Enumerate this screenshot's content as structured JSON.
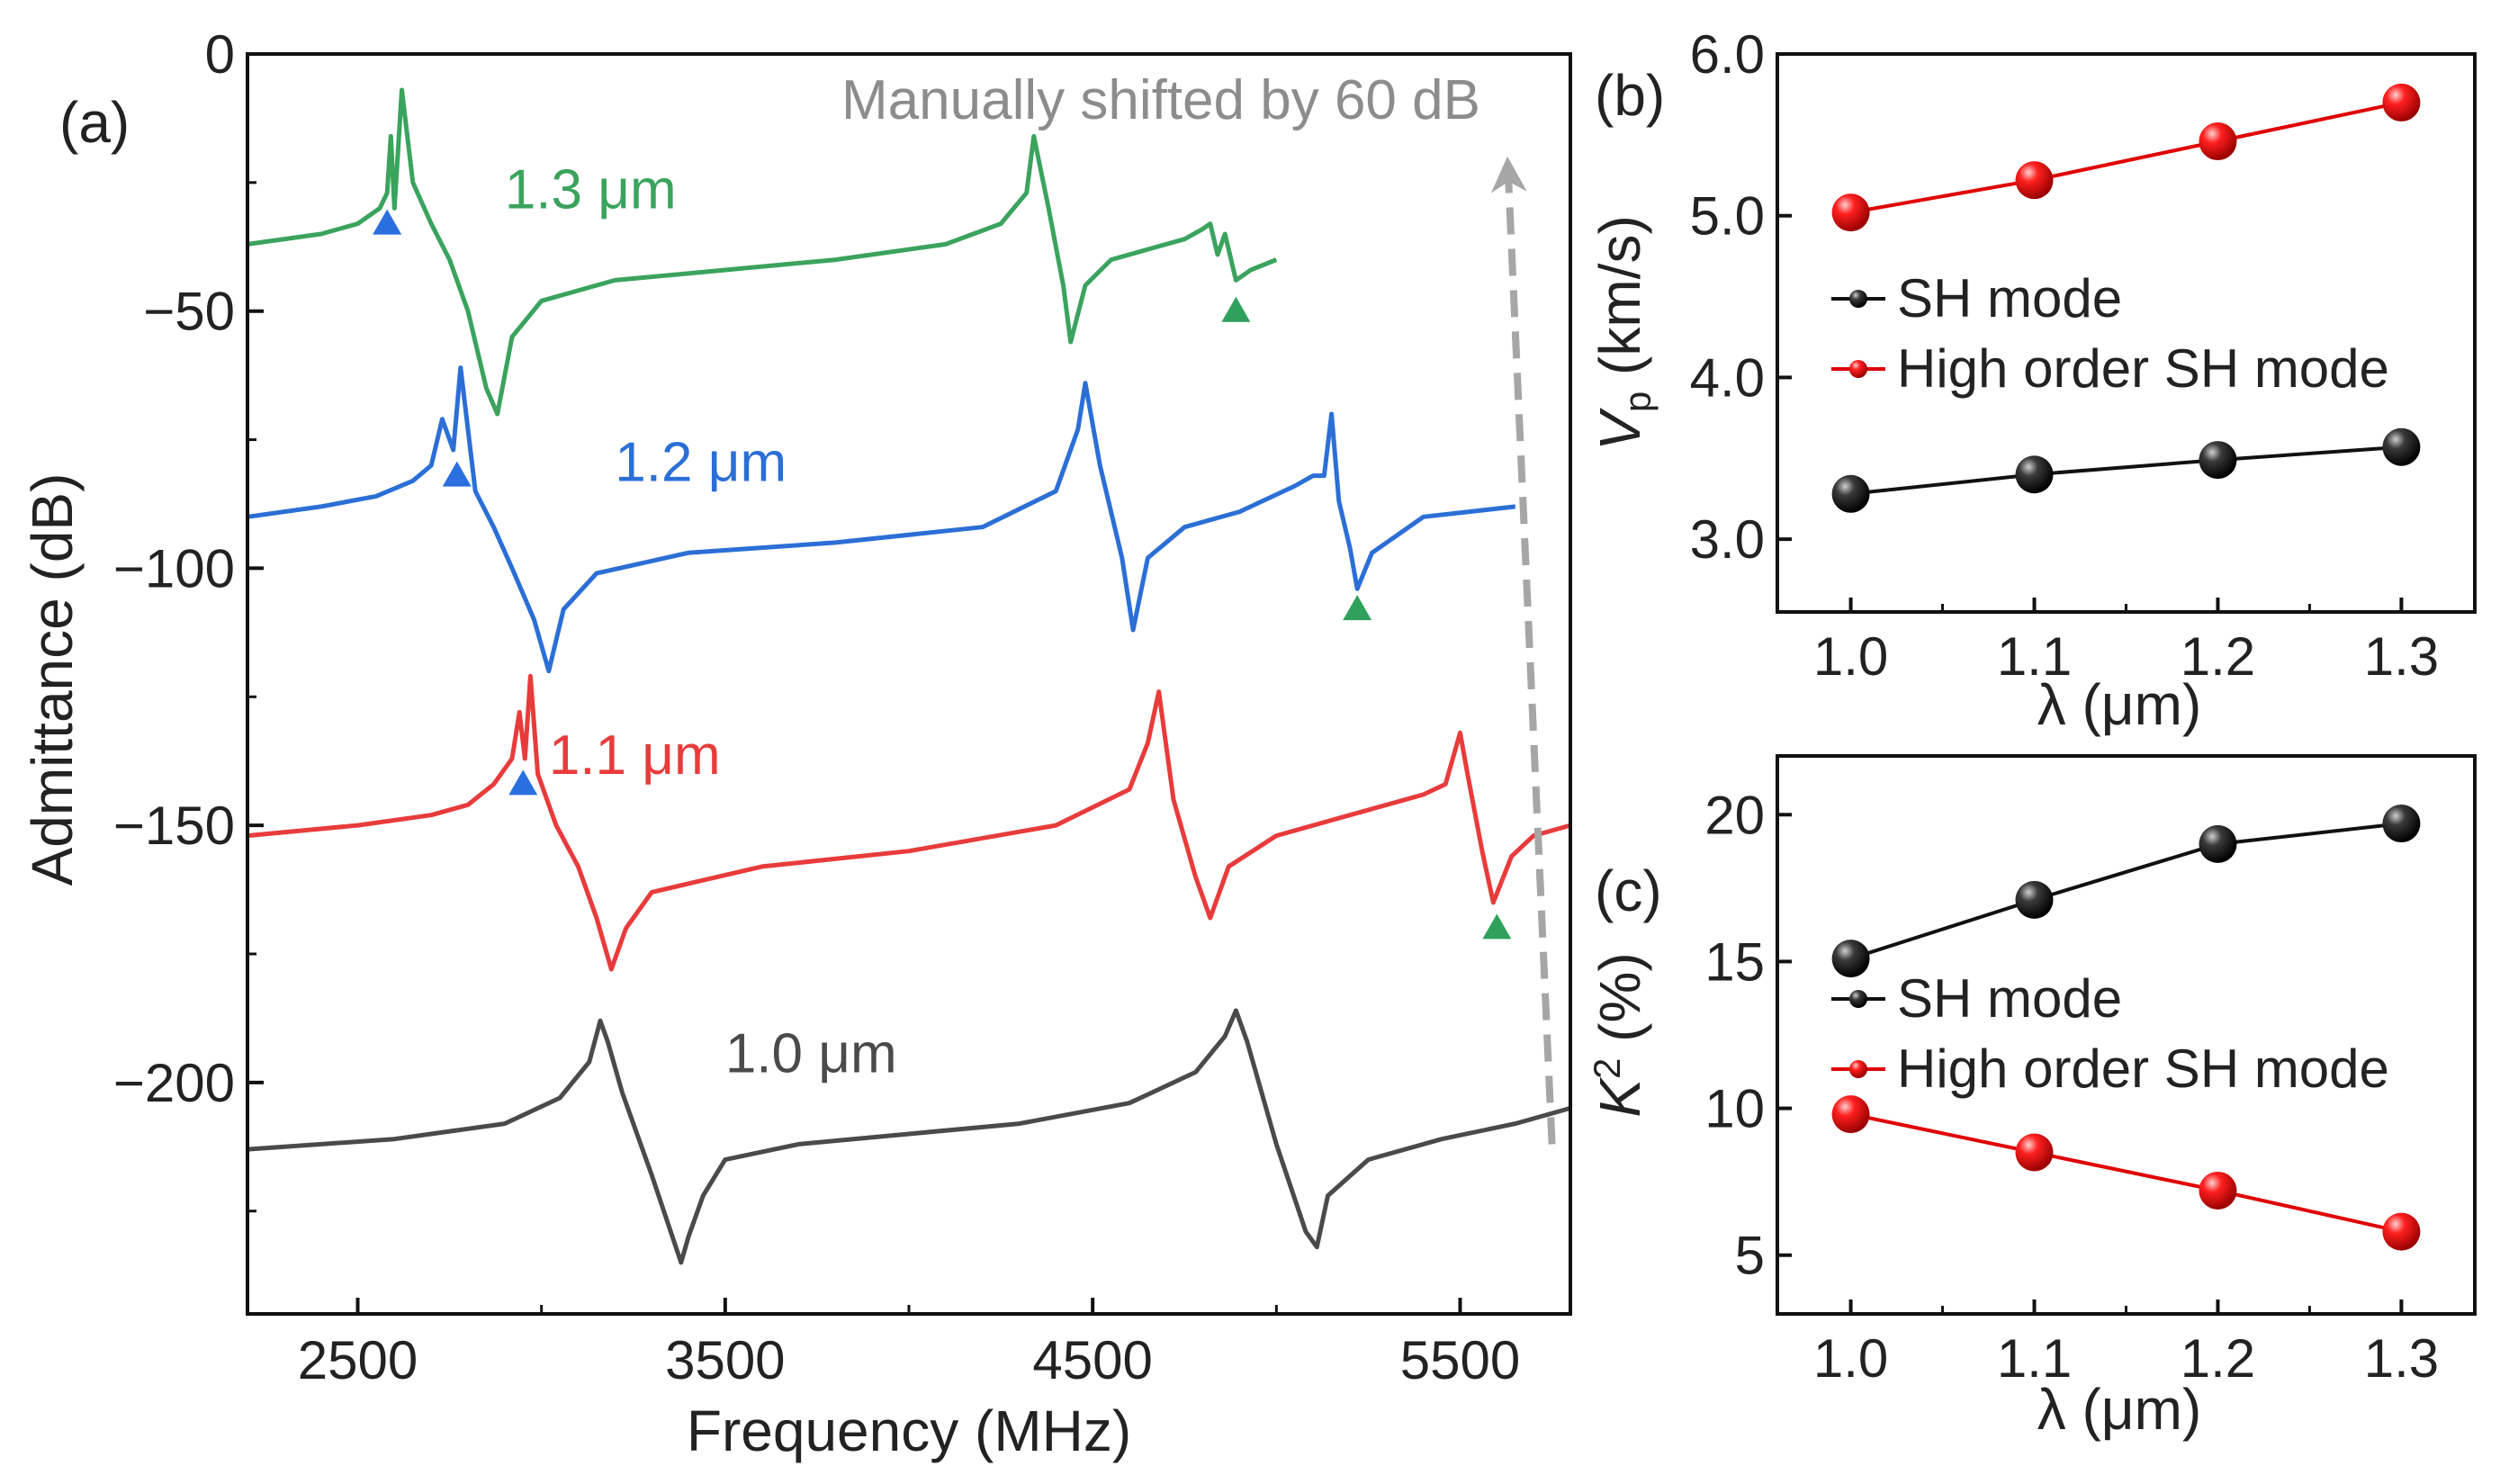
{
  "chart_data": [
    {
      "panel": "(a)",
      "type": "line",
      "xlabel": "Frequency (MHz)",
      "ylabel": "Admittance (dB)",
      "xlim": [
        2200,
        5800
      ],
      "ylim": [
        -245,
        0
      ],
      "xticks": [
        2500,
        3500,
        4500,
        5500
      ],
      "xtick_labels": [
        "2500",
        "3500",
        "4500",
        "5500"
      ],
      "yticks": [
        0,
        -50,
        -100,
        -150,
        -200
      ],
      "ytick_labels": [
        "0",
        "−50",
        "−100",
        "−150",
        "−200"
      ],
      "annotation": "Manually shifted by 60 dB",
      "colors": {
        "blue_marker": "#2a6fe0",
        "green_marker": "#2fa15c",
        "arrow": "#a6a6a6"
      },
      "series": [
        {
          "name": "1.3 μm",
          "color": "#3aa35d",
          "label_pos": [
            2900,
            -30
          ],
          "x": [
            2200,
            2400,
            2500,
            2560,
            2580,
            2590,
            2600,
            2620,
            2650,
            2700,
            2750,
            2800,
            2850,
            2880,
            2920,
            3000,
            3200,
            3500,
            3800,
            4100,
            4250,
            4320,
            4340,
            4380,
            4420,
            4440,
            4480,
            4550,
            4650,
            4750,
            4800,
            4820,
            4840,
            4860,
            4890,
            4930,
            5000
          ],
          "y": [
            -37,
            -35,
            -33,
            -30,
            -27,
            -16,
            -30,
            -7,
            -25,
            -33,
            -40,
            -50,
            -65,
            -70,
            -55,
            -48,
            -44,
            -42,
            -40,
            -37,
            -33,
            -27,
            -16,
            -30,
            -45,
            -56,
            -45,
            -40,
            -38,
            -36,
            -34,
            -33,
            -39,
            -35,
            -44,
            -42,
            -40
          ]
        },
        {
          "name": "1.2 μm",
          "color": "#2b6fd6",
          "label_pos": [
            3200,
            -83
          ],
          "x": [
            2200,
            2400,
            2550,
            2650,
            2700,
            2730,
            2760,
            2780,
            2820,
            2870,
            2920,
            2980,
            3020,
            3060,
            3150,
            3400,
            3800,
            4200,
            4400,
            4460,
            4480,
            4520,
            4580,
            4610,
            4650,
            4750,
            4900,
            5050,
            5100,
            5130,
            5150,
            5170,
            5200,
            5220,
            5260,
            5400,
            5650
          ],
          "y": [
            -90,
            -88,
            -86,
            -83,
            -80,
            -71,
            -77,
            -61,
            -85,
            -92,
            -100,
            -110,
            -120,
            -108,
            -101,
            -97,
            -95,
            -92,
            -85,
            -73,
            -64,
            -80,
            -98,
            -112,
            -98,
            -92,
            -89,
            -84,
            -82,
            -82,
            -70,
            -87,
            -96,
            -104,
            -97,
            -90,
            -88
          ]
        },
        {
          "name": "1.1 μm",
          "color": "#e83b3b",
          "label_pos": [
            3020,
            -140
          ],
          "x": [
            2200,
            2500,
            2700,
            2800,
            2870,
            2920,
            2940,
            2955,
            2970,
            2990,
            3040,
            3100,
            3150,
            3190,
            3230,
            3300,
            3600,
            4000,
            4400,
            4600,
            4650,
            4680,
            4720,
            4780,
            4820,
            4870,
            5000,
            5200,
            5400,
            5460,
            5500,
            5520,
            5560,
            5590,
            5640,
            5700,
            5800
          ],
          "y": [
            -152,
            -150,
            -148,
            -146,
            -142,
            -137,
            -128,
            -137,
            -121,
            -140,
            -150,
            -158,
            -168,
            -178,
            -170,
            -163,
            -158,
            -155,
            -150,
            -143,
            -134,
            -124,
            -145,
            -160,
            -168,
            -158,
            -152,
            -148,
            -144,
            -142,
            -132,
            -140,
            -155,
            -165,
            -156,
            -152,
            -150
          ]
        },
        {
          "name": "1.0 μm",
          "color": "#4a4a4a",
          "label_pos": [
            3500,
            -198
          ],
          "x": [
            2200,
            2600,
            2900,
            3050,
            3130,
            3160,
            3180,
            3220,
            3300,
            3380,
            3400,
            3440,
            3500,
            3700,
            4000,
            4300,
            4600,
            4780,
            4860,
            4890,
            4920,
            5000,
            5080,
            5110,
            5140,
            5250,
            5450,
            5650,
            5800
          ],
          "y": [
            -213,
            -211,
            -208,
            -203,
            -196,
            -188,
            -192,
            -202,
            -218,
            -235,
            -230,
            -222,
            -215,
            -212,
            -210,
            -208,
            -204,
            -198,
            -191,
            -186,
            -192,
            -212,
            -229,
            -232,
            -222,
            -215,
            -211,
            -208,
            -205
          ]
        }
      ],
      "markers": [
        {
          "series": "1.3 μm",
          "shape": "triangle",
          "color": "#2a6fe0",
          "x": 2580,
          "y": -33
        },
        {
          "series": "1.3 μm",
          "shape": "triangle",
          "color": "#2fa15c",
          "x": 4890,
          "y": -50
        },
        {
          "series": "1.2 μm",
          "shape": "triangle",
          "color": "#2a6fe0",
          "x": 2770,
          "y": -82
        },
        {
          "series": "1.2 μm",
          "shape": "triangle",
          "color": "#2fa15c",
          "x": 5220,
          "y": -108
        },
        {
          "series": "1.1 μm",
          "shape": "triangle",
          "color": "#2a6fe0",
          "x": 2950,
          "y": -142
        },
        {
          "series": "1.1 μm",
          "shape": "triangle",
          "color": "#2fa15c",
          "x": 5600,
          "y": -170
        }
      ],
      "arrow": {
        "x_start": 5750,
        "y_start": -212,
        "x_end": 5630,
        "y_end": -22
      }
    },
    {
      "panel": "(b)",
      "type": "line",
      "xlabel": "λ (μm)",
      "ylabel_main": "V",
      "ylabel_sub": "p",
      "ylabel_rest": " (km/s)",
      "xlim": [
        0.96,
        1.34
      ],
      "ylim": [
        2.55,
        6.0
      ],
      "xticks": [
        1.0,
        1.1,
        1.2,
        1.3
      ],
      "xtick_labels": [
        "1.0",
        "1.1",
        "1.2",
        "1.3"
      ],
      "yticks": [
        3.0,
        4.0,
        5.0,
        6.0
      ],
      "ytick_labels": [
        "3.0",
        "4.0",
        "5.0",
        "6.0"
      ],
      "legend_position": "center-left",
      "series": [
        {
          "name": "SH mode",
          "color": "#111111",
          "x": [
            1.0,
            1.1,
            1.2,
            1.3
          ],
          "y": [
            3.28,
            3.4,
            3.49,
            3.57
          ]
        },
        {
          "name": "High order SH mode",
          "color": "#e00000",
          "x": [
            1.0,
            1.1,
            1.2,
            1.3
          ],
          "y": [
            5.02,
            5.22,
            5.46,
            5.7
          ]
        }
      ]
    },
    {
      "panel": "(c)",
      "type": "line",
      "xlabel": "λ (μm)",
      "ylabel_main": "K",
      "ylabel_sup": "2",
      "ylabel_rest": " (%)",
      "xlim": [
        0.96,
        1.34
      ],
      "ylim": [
        3,
        22
      ],
      "xticks": [
        1.0,
        1.1,
        1.2,
        1.3
      ],
      "xtick_labels": [
        "1.0",
        "1.1",
        "1.2",
        "1.3"
      ],
      "yticks": [
        5,
        10,
        15,
        20
      ],
      "ytick_labels": [
        "5",
        "10",
        "15",
        "20"
      ],
      "legend_position": "center-left",
      "series": [
        {
          "name": "SH mode",
          "color": "#111111",
          "x": [
            1.0,
            1.1,
            1.2,
            1.3
          ],
          "y": [
            15.1,
            17.1,
            19.0,
            19.7
          ]
        },
        {
          "name": "High order SH mode",
          "color": "#e00000",
          "x": [
            1.0,
            1.1,
            1.2,
            1.3
          ],
          "y": [
            9.8,
            8.5,
            7.2,
            5.8
          ]
        }
      ]
    }
  ]
}
